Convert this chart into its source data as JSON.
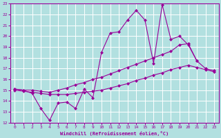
{
  "xlabel": "Windchill (Refroidissement éolien,°C)",
  "bg_color": "#b2e0e0",
  "grid_color": "#ffffff",
  "line_color": "#990099",
  "xlim": [
    -0.5,
    23.5
  ],
  "ylim": [
    12,
    23
  ],
  "xticks": [
    0,
    1,
    2,
    3,
    4,
    5,
    6,
    7,
    8,
    9,
    10,
    11,
    12,
    13,
    14,
    15,
    16,
    17,
    18,
    19,
    20,
    21,
    22,
    23
  ],
  "yticks": [
    12,
    13,
    14,
    15,
    16,
    17,
    18,
    19,
    20,
    21,
    22,
    23
  ],
  "line1_x": [
    0,
    1,
    2,
    3,
    4,
    5,
    6,
    7,
    8,
    9,
    10,
    11,
    12,
    13,
    14,
    15,
    16,
    17,
    18,
    19,
    20,
    21
  ],
  "line1_y": [
    15.1,
    15.0,
    14.7,
    13.3,
    12.2,
    13.8,
    13.9,
    13.3,
    15.1,
    14.3,
    18.5,
    20.3,
    20.4,
    21.5,
    22.4,
    21.5,
    17.5,
    22.9,
    19.7,
    20.0,
    19.2,
    17.7
  ],
  "line2_x": [
    0,
    1,
    2,
    3,
    4,
    5,
    6,
    7,
    8,
    9,
    10,
    11,
    12,
    13,
    14,
    15,
    16,
    17,
    18,
    19,
    20,
    21,
    22,
    23
  ],
  "line2_y": [
    15.1,
    15.0,
    15.0,
    14.9,
    14.8,
    15.0,
    15.2,
    15.5,
    15.7,
    16.0,
    16.2,
    16.5,
    16.8,
    17.1,
    17.4,
    17.7,
    18.0,
    18.3,
    18.6,
    19.2,
    19.3,
    17.7,
    17.0,
    16.8
  ],
  "line3_x": [
    0,
    1,
    2,
    3,
    4,
    5,
    6,
    7,
    8,
    9,
    10,
    11,
    12,
    13,
    14,
    15,
    16,
    17,
    18,
    19,
    20,
    21,
    22,
    23
  ],
  "line3_y": [
    15.0,
    14.9,
    14.8,
    14.7,
    14.6,
    14.6,
    14.6,
    14.7,
    14.8,
    14.9,
    15.0,
    15.2,
    15.4,
    15.6,
    15.9,
    16.1,
    16.4,
    16.6,
    16.9,
    17.1,
    17.3,
    17.1,
    16.9,
    16.7
  ]
}
